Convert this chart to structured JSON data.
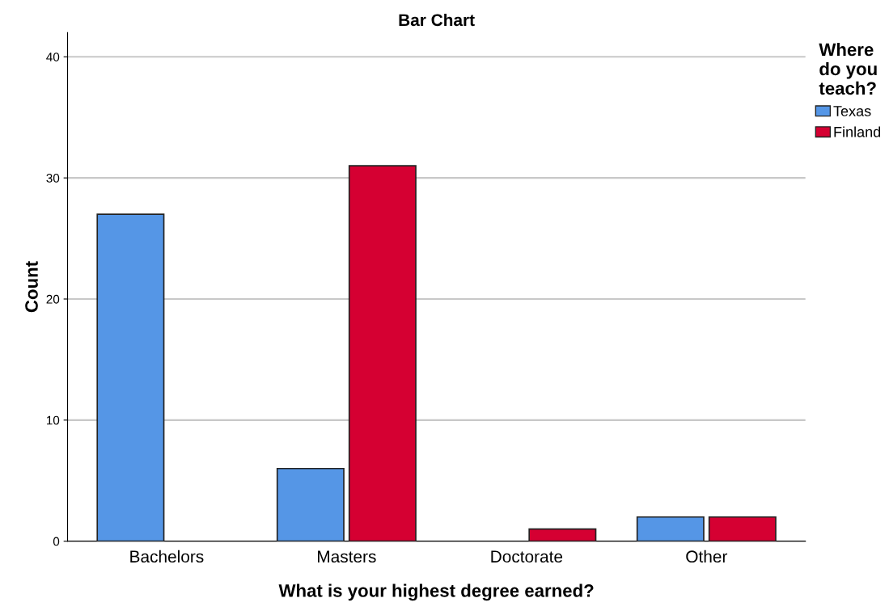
{
  "chart_data": {
    "type": "bar",
    "title": "Bar Chart",
    "xlabel": "What is your highest degree earned?",
    "ylabel": "Count",
    "categories": [
      "Bachelors",
      "Masters",
      "Doctorate",
      "Other"
    ],
    "series": [
      {
        "name": "Texas",
        "color": "#5596e6",
        "values": [
          27,
          6,
          null,
          2
        ]
      },
      {
        "name": "Finland",
        "color": "#d50032",
        "values": [
          null,
          31,
          1,
          2
        ]
      }
    ],
    "legend_title": "Where\ndo you\nteach?",
    "legend": "top right",
    "ylim": [
      0,
      42
    ],
    "yticks": [
      0,
      10,
      20,
      30,
      40
    ],
    "grid": "y"
  }
}
